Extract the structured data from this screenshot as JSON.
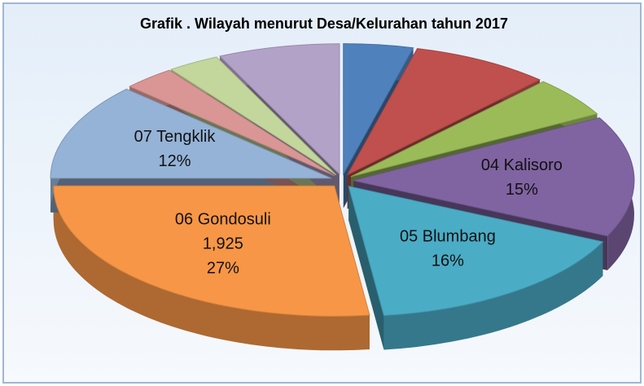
{
  "chart_data": {
    "type": "pie",
    "title": "Grafik . Wilayah menurut Desa/Kelurahan tahun 2017",
    "categories": [
      null,
      null,
      null,
      "04 Kalisoro",
      "05 Blumbang",
      "06 Gondosuli",
      "07 Tengklik",
      null,
      null,
      null
    ],
    "values": [
      4,
      8,
      5,
      15,
      16,
      27,
      12,
      3,
      3,
      7
    ],
    "value_labels": [
      null,
      null,
      null,
      "15%",
      "16%",
      "27%",
      "12%",
      null,
      null,
      null
    ],
    "counts": [
      null,
      null,
      null,
      null,
      null,
      1925,
      null,
      null,
      null,
      null
    ],
    "count_labels": [
      null,
      null,
      null,
      null,
      null,
      "1,925",
      null,
      null,
      null,
      null
    ],
    "colors": [
      "#4f81bd",
      "#c0504d",
      "#9bbb59",
      "#8064a2",
      "#4bacc6",
      "#f79646",
      "#95b3d7",
      "#d99694",
      "#c3d69b",
      "#b3a2c7"
    ]
  }
}
